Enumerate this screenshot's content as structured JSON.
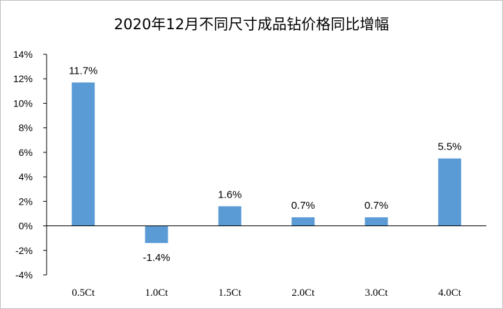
{
  "chart_data": {
    "type": "bar",
    "title": "2020年12月不同尺寸成品钻价格同比增幅",
    "categories": [
      "0.5Ct",
      "1.0Ct",
      "1.5Ct",
      "2.0Ct",
      "3.0Ct",
      "4.0Ct"
    ],
    "values": [
      11.7,
      -1.4,
      1.6,
      0.7,
      0.7,
      5.5
    ],
    "data_labels": [
      "11.7%",
      "-1.4%",
      "1.6%",
      "0.7%",
      "0.7%",
      "5.5%"
    ],
    "ylim": [
      -4,
      14
    ],
    "yticks": [
      -4,
      -2,
      0,
      2,
      4,
      6,
      8,
      10,
      12,
      14
    ],
    "ytick_labels": [
      "-4%",
      "-2%",
      "0%",
      "2%",
      "4%",
      "6%",
      "8%",
      "10%",
      "12%",
      "14%"
    ],
    "bar_color": "#5b9bd5",
    "grid": false,
    "legend": "none"
  }
}
